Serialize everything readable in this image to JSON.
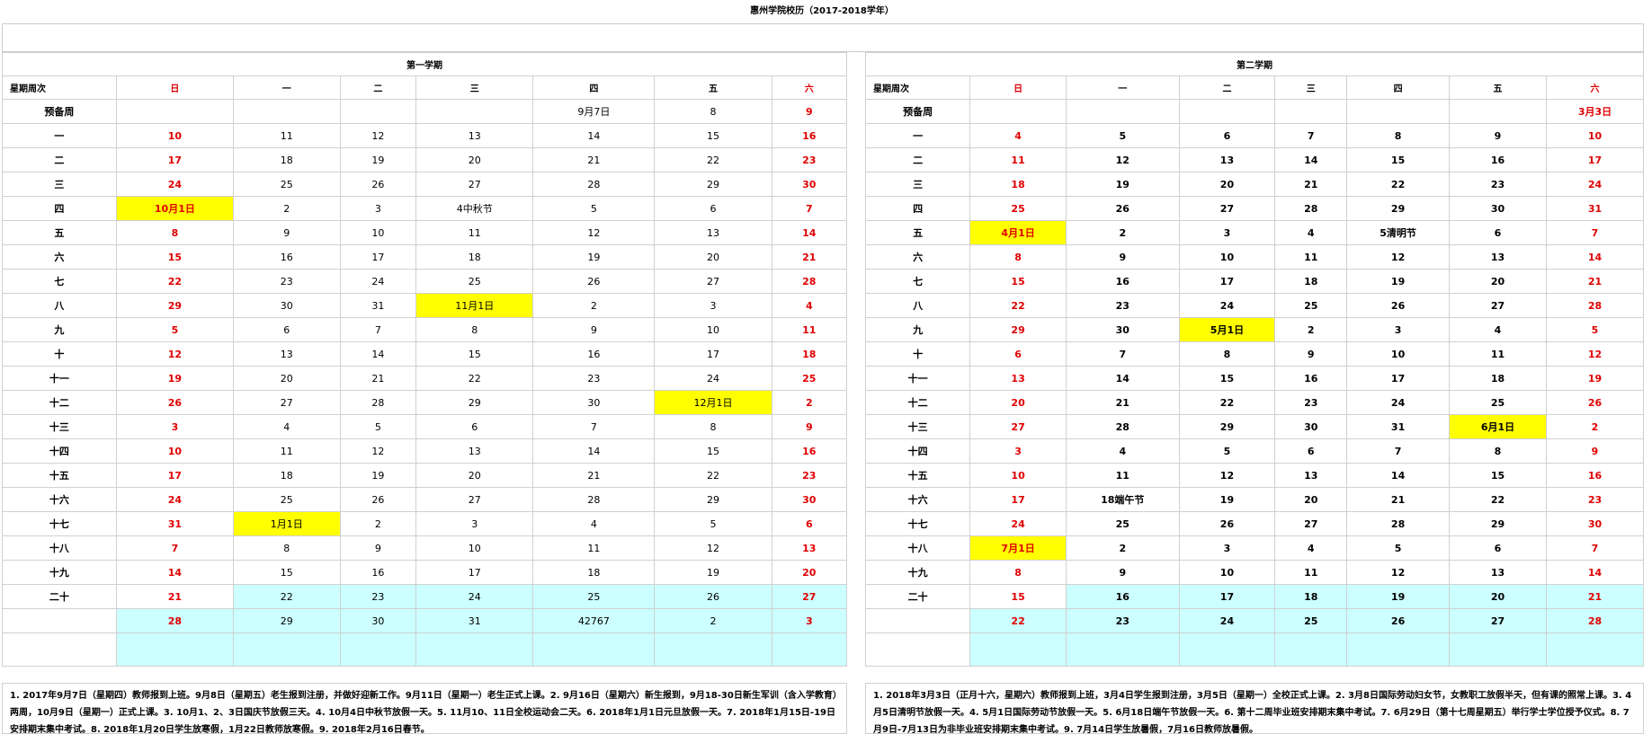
{
  "title": "惠州学院校历（2017-2018学年）",
  "colors": {
    "red": "#e00000",
    "yellow": "#ffff00",
    "cyan": "#ccffff"
  },
  "semesters": [
    {
      "name": "第一学期",
      "header": [
        "星期周次",
        "日",
        "一",
        "二",
        "三",
        "四",
        "五",
        "六"
      ],
      "rows": [
        {
          "label": "预备周",
          "cells": [
            "",
            "",
            "",
            "",
            "9月7日",
            "8",
            "9"
          ]
        },
        {
          "label": "一",
          "cells": [
            "10",
            "11",
            "12",
            "13",
            "14",
            "15",
            "16"
          ]
        },
        {
          "label": "二",
          "cells": [
            "17",
            "18",
            "19",
            "20",
            "21",
            "22",
            "23"
          ]
        },
        {
          "label": "三",
          "cells": [
            "24",
            "25",
            "26",
            "27",
            "28",
            "29",
            "30"
          ]
        },
        {
          "label": "四",
          "cells": [
            "10月1日",
            "2",
            "3",
            "4中秋节",
            "5",
            "6",
            "7"
          ]
        },
        {
          "label": "五",
          "cells": [
            "8",
            "9",
            "10",
            "11",
            "12",
            "13",
            "14"
          ]
        },
        {
          "label": "六",
          "cells": [
            "15",
            "16",
            "17",
            "18",
            "19",
            "20",
            "21"
          ]
        },
        {
          "label": "七",
          "cells": [
            "22",
            "23",
            "24",
            "25",
            "26",
            "27",
            "28"
          ]
        },
        {
          "label": "八",
          "cells": [
            "29",
            "30",
            "31",
            "11月1日",
            "2",
            "3",
            "4"
          ]
        },
        {
          "label": "九",
          "cells": [
            "5",
            "6",
            "7",
            "8",
            "9",
            "10",
            "11"
          ]
        },
        {
          "label": "十",
          "cells": [
            "12",
            "13",
            "14",
            "15",
            "16",
            "17",
            "18"
          ]
        },
        {
          "label": "十一",
          "cells": [
            "19",
            "20",
            "21",
            "22",
            "23",
            "24",
            "25"
          ]
        },
        {
          "label": "十二",
          "cells": [
            "26",
            "27",
            "28",
            "29",
            "30",
            "12月1日",
            "2"
          ]
        },
        {
          "label": "十三",
          "cells": [
            "3",
            "4",
            "5",
            "6",
            "7",
            "8",
            "9"
          ]
        },
        {
          "label": "十四",
          "cells": [
            "10",
            "11",
            "12",
            "13",
            "14",
            "15",
            "16"
          ]
        },
        {
          "label": "十五",
          "cells": [
            "17",
            "18",
            "19",
            "20",
            "21",
            "22",
            "23"
          ]
        },
        {
          "label": "十六",
          "cells": [
            "24",
            "25",
            "26",
            "27",
            "28",
            "29",
            "30"
          ]
        },
        {
          "label": "十七",
          "cells": [
            "31",
            "1月1日",
            "2",
            "3",
            "4",
            "5",
            "6"
          ]
        },
        {
          "label": "十八",
          "cells": [
            "7",
            "8",
            "9",
            "10",
            "11",
            "12",
            "13"
          ]
        },
        {
          "label": "十九",
          "cells": [
            "14",
            "15",
            "16",
            "17",
            "18",
            "19",
            "20"
          ]
        },
        {
          "label": "二十",
          "cells": [
            "21",
            "22",
            "23",
            "24",
            "25",
            "26",
            "27"
          ]
        },
        {
          "label": "",
          "cells": [
            "28",
            "29",
            "30",
            "31",
            "42767",
            "2",
            "3"
          ]
        },
        {
          "label": "",
          "cells": [
            "",
            "",
            "",
            "",
            "",
            "",
            ""
          ]
        }
      ],
      "highlights": {
        "yellow": [
          "4-0",
          "8-3",
          "12-5",
          "17-1"
        ],
        "cyan_from_row": 20,
        "cyan_from_col_first": 1
      },
      "notes": "1. 2017年9月7日（星期四）教师报到上班。9月8日（星期五）老生报到注册，并做好迎新工作。9月11日（星期一）老生正式上课。2. 9月16日（星期六）新生报到，9月18-30日新生军训（含入学教育）两周，10月9日（星期一）正式上课。3. 10月1、2、3日国庆节放假三天。4. 10月4日中秋节放假一天。5. 11月10、11日全校运动会二天。6. 2018年1月1日元旦放假一天。7. 2018年1月15日-19日安排期末集中考试。8. 2018年1月20日学生放寒假，1月22日教师放寒假。9. 2018年2月16日春节。"
    },
    {
      "name": "第二学期",
      "header": [
        "星期周次",
        "日",
        "一",
        "二",
        "三",
        "四",
        "五",
        "六"
      ],
      "rows": [
        {
          "label": "预备周",
          "cells": [
            "",
            "",
            "",
            "",
            "",
            "",
            "3月3日"
          ]
        },
        {
          "label": "一",
          "cells": [
            "4",
            "5",
            "6",
            "7",
            "8",
            "9",
            "10"
          ]
        },
        {
          "label": "二",
          "cells": [
            "11",
            "12",
            "13",
            "14",
            "15",
            "16",
            "17"
          ]
        },
        {
          "label": "三",
          "cells": [
            "18",
            "19",
            "20",
            "21",
            "22",
            "23",
            "24"
          ]
        },
        {
          "label": "四",
          "cells": [
            "25",
            "26",
            "27",
            "28",
            "29",
            "30",
            "31"
          ]
        },
        {
          "label": "五",
          "cells": [
            "4月1日",
            "2",
            "3",
            "4",
            "5清明节",
            "6",
            "7"
          ]
        },
        {
          "label": "六",
          "cells": [
            "8",
            "9",
            "10",
            "11",
            "12",
            "13",
            "14"
          ]
        },
        {
          "label": "七",
          "cells": [
            "15",
            "16",
            "17",
            "18",
            "19",
            "20",
            "21"
          ]
        },
        {
          "label": "八",
          "cells": [
            "22",
            "23",
            "24",
            "25",
            "26",
            "27",
            "28"
          ]
        },
        {
          "label": "九",
          "cells": [
            "29",
            "30",
            "5月1日",
            "2",
            "3",
            "4",
            "5"
          ]
        },
        {
          "label": "十",
          "cells": [
            "6",
            "7",
            "8",
            "9",
            "10",
            "11",
            "12"
          ]
        },
        {
          "label": "十一",
          "cells": [
            "13",
            "14",
            "15",
            "16",
            "17",
            "18",
            "19"
          ]
        },
        {
          "label": "十二",
          "cells": [
            "20",
            "21",
            "22",
            "23",
            "24",
            "25",
            "26"
          ]
        },
        {
          "label": "十三",
          "cells": [
            "27",
            "28",
            "29",
            "30",
            "31",
            "6月1日",
            "2"
          ]
        },
        {
          "label": "十四",
          "cells": [
            "3",
            "4",
            "5",
            "6",
            "7",
            "8",
            "9"
          ]
        },
        {
          "label": "十五",
          "cells": [
            "10",
            "11",
            "12",
            "13",
            "14",
            "15",
            "16"
          ]
        },
        {
          "label": "十六",
          "cells": [
            "17",
            "18端午节",
            "19",
            "20",
            "21",
            "22",
            "23"
          ]
        },
        {
          "label": "十七",
          "cells": [
            "24",
            "25",
            "26",
            "27",
            "28",
            "29",
            "30"
          ]
        },
        {
          "label": "十八",
          "cells": [
            "7月1日",
            "2",
            "3",
            "4",
            "5",
            "6",
            "7"
          ]
        },
        {
          "label": "十九",
          "cells": [
            "8",
            "9",
            "10",
            "11",
            "12",
            "13",
            "14"
          ]
        },
        {
          "label": "二十",
          "cells": [
            "15",
            "16",
            "17",
            "18",
            "19",
            "20",
            "21"
          ]
        },
        {
          "label": "",
          "cells": [
            "22",
            "23",
            "24",
            "25",
            "26",
            "27",
            "28"
          ]
        },
        {
          "label": "",
          "cells": [
            "",
            "",
            "",
            "",
            "",
            "",
            ""
          ]
        }
      ],
      "highlights": {
        "yellow": [
          "5-0",
          "9-2",
          "13-5",
          "18-0"
        ],
        "cyan_from_row": 20,
        "cyan_from_col_first": 1
      },
      "notes": "1. 2018年3月3日（正月十六，星期六）教师报到上班，3月4日学生报到注册，3月5日（星期一）全校正式上课。2. 3月8日国际劳动妇女节，女教职工放假半天，但有课的照常上课。3. 4月5日清明节放假一天。4. 5月1日国际劳动节放假一天。5. 6月18日端午节放假一天。6. 第十二周毕业班安排期末集中考试。7. 6月29日（第十七周星期五）举行学士学位授予仪式。8. 7月9日-7月13日为非毕业班安排期末集中考试。9. 7月14日学生放暑假，7月16日教师放暑假。"
    }
  ]
}
